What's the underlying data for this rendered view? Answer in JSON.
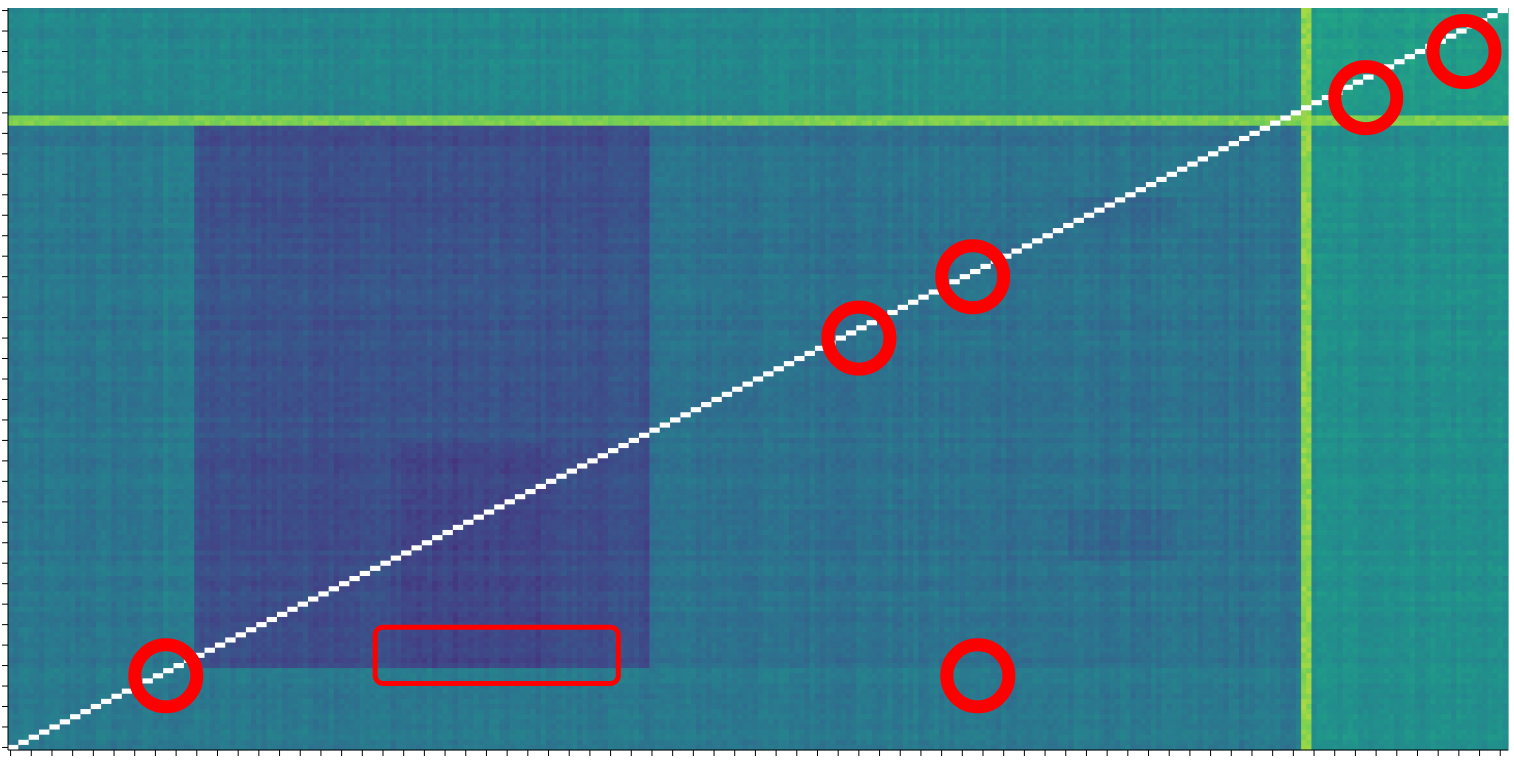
{
  "chart_data": {
    "type": "heatmap",
    "title": "",
    "xlabel": "",
    "ylabel": "",
    "colormap": "viridis",
    "value_range": [
      0,
      1
    ],
    "grid": false,
    "legend": "none",
    "diagonal_color": "#ffffff",
    "region_levels": {
      "background": 0.47,
      "dark_block": 0.33,
      "band_bottom_rows": 0.5,
      "band_top_rows": 0.57,
      "bright_row_line": 0.88,
      "bright_col_line": 0.9,
      "bright_cols_right": 0.62,
      "overlap_top_right": 0.68
    },
    "matrix_shape": {
      "rows": 145,
      "cols": 290
    },
    "annotations": {
      "color": "#ff0000",
      "circles": [
        {
          "row": 8,
          "col": 281
        },
        {
          "row": 17,
          "col": 262
        },
        {
          "row": 52,
          "col": 186
        },
        {
          "row": 64,
          "col": 164
        },
        {
          "row": 130,
          "col": 30
        },
        {
          "row": 130,
          "col": 187
        }
      ],
      "rectangles": [
        {
          "row_start": 121,
          "row_end": 132,
          "col_start": 71,
          "col_end": 118
        }
      ]
    }
  }
}
